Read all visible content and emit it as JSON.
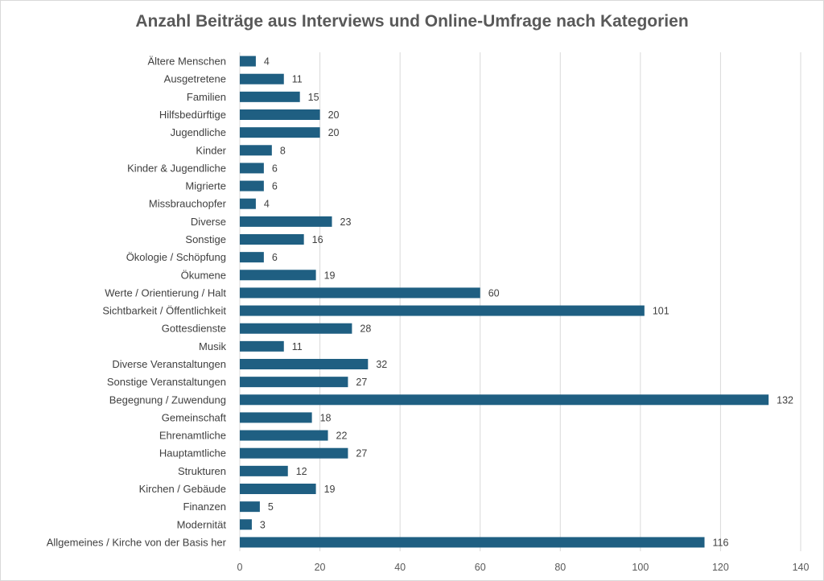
{
  "chart_data": {
    "type": "bar",
    "orientation": "horizontal",
    "title": "Anzahl Beiträge aus Interviews und Online-Umfrage nach Kategorien",
    "xlabel": "",
    "ylabel": "",
    "xlim": [
      0,
      140
    ],
    "x_ticks": [
      0,
      20,
      40,
      60,
      80,
      100,
      120,
      140
    ],
    "grid": "vertical",
    "legend": "none",
    "bar_color": "#1f5f82",
    "categories": [
      "Ältere Menschen",
      "Ausgetretene",
      "Familien",
      "Hilfsbedürftige",
      "Jugendliche",
      "Kinder",
      "Kinder & Jugendliche",
      "Migrierte",
      "Missbrauchopfer",
      "Diverse",
      "Sonstige",
      "Ökologie / Schöpfung",
      "Ökumene",
      "Werte / Orientierung / Halt",
      "Sichtbarkeit / Öffentlichkeit",
      "Gottesdienste",
      "Musik",
      "Diverse Veranstaltungen",
      "Sonstige Veranstaltungen",
      "Begegnung / Zuwendung",
      "Gemeinschaft",
      "Ehrenamtliche",
      "Hauptamtliche",
      "Strukturen",
      "Kirchen / Gebäude",
      "Finanzen",
      "Modernität",
      "Allgemeines / Kirche von der Basis her"
    ],
    "values": [
      4,
      11,
      15,
      20,
      20,
      8,
      6,
      6,
      4,
      23,
      16,
      6,
      19,
      60,
      101,
      28,
      11,
      32,
      27,
      132,
      18,
      22,
      27,
      12,
      19,
      5,
      3,
      116
    ]
  }
}
